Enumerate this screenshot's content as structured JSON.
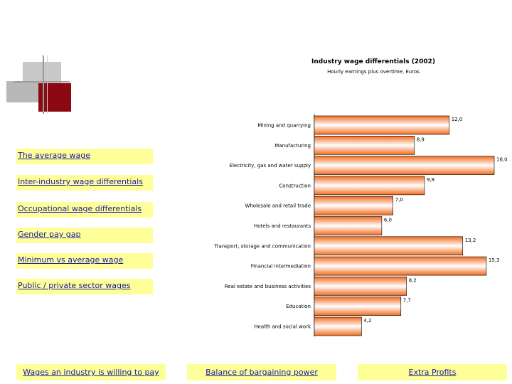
{
  "left_links": [
    "The average wage",
    "Inter-industry wage differentials",
    "Occupational wage differentials",
    "Gender pay gap",
    "Minimum vs average wage",
    "Public / private sector wages"
  ],
  "bottom_links": [
    "Wages an industry is willing to pay",
    "Balance of bargaining power",
    "Extra Profits"
  ],
  "colors": {
    "bar_edge": "#f26b1d",
    "bar_center": "#ffffff",
    "link_bg": "#ffff99",
    "link_text": "#1a1aa6",
    "accent_red": "#8b0a12"
  },
  "chart_data": {
    "type": "bar",
    "orientation": "horizontal",
    "title": "Industry wage differentials (2002)",
    "subtitle": "Hourly earnings plus overtime, Euros",
    "categories": [
      "Mining and quarrying",
      "Manufacturing",
      "Electricity, gas and water supply",
      "Construction",
      "Wholesale and retail trade",
      "Hotels and restaurants",
      "Transport, storage and communication",
      "Financial intermediation",
      "Real estate and business activities",
      "Education",
      "Health and social work"
    ],
    "values": [
      12.0,
      8.9,
      16.0,
      9.8,
      7.0,
      6.0,
      13.2,
      15.3,
      8.2,
      7.7,
      4.2
    ],
    "value_labels": [
      "12,0",
      "8,9",
      "16,0",
      "9,8",
      "7,0",
      "6,0",
      "13,2",
      "15,3",
      "8,2",
      "7,7",
      "4,2"
    ],
    "xlim": [
      0,
      16.0
    ],
    "grid": false,
    "legend": "none"
  }
}
